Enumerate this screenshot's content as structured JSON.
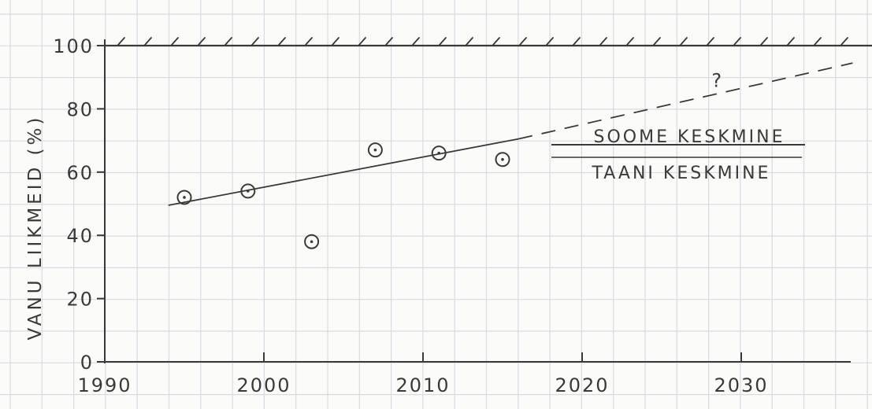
{
  "chart_data": {
    "type": "scatter",
    "title": "",
    "xlabel": "",
    "ylabel": "VANU LIIKMEID (%)",
    "xlim": [
      1990,
      2037
    ],
    "ylim": [
      0,
      100
    ],
    "xticks": [
      1990,
      2000,
      2010,
      2020,
      2030
    ],
    "yticks": [
      0,
      20,
      40,
      60,
      80,
      100
    ],
    "grid": true,
    "points": [
      {
        "x": 1995,
        "y": 52
      },
      {
        "x": 1999,
        "y": 54
      },
      {
        "x": 2003,
        "y": 38
      },
      {
        "x": 2007,
        "y": 67
      },
      {
        "x": 2011,
        "y": 66
      },
      {
        "x": 2015,
        "y": 64
      }
    ],
    "trend_solid": {
      "x": [
        1994,
        2016
      ],
      "y": [
        49.5,
        70.5
      ]
    },
    "trend_dashed": {
      "x": [
        2016,
        2037
      ],
      "y": [
        70.5,
        94.5
      ]
    },
    "upper_limit": 100,
    "question_mark": {
      "x": 2028.5,
      "y": 87,
      "text": "?"
    },
    "legend_fraction": {
      "numerator": "SOOME KESKMINE",
      "denominator": "TAANI KESKMINE"
    },
    "colors": {
      "ink": "#3a3a3a",
      "grid": "#d9dbe0",
      "paper": "#fbfbf9"
    }
  }
}
